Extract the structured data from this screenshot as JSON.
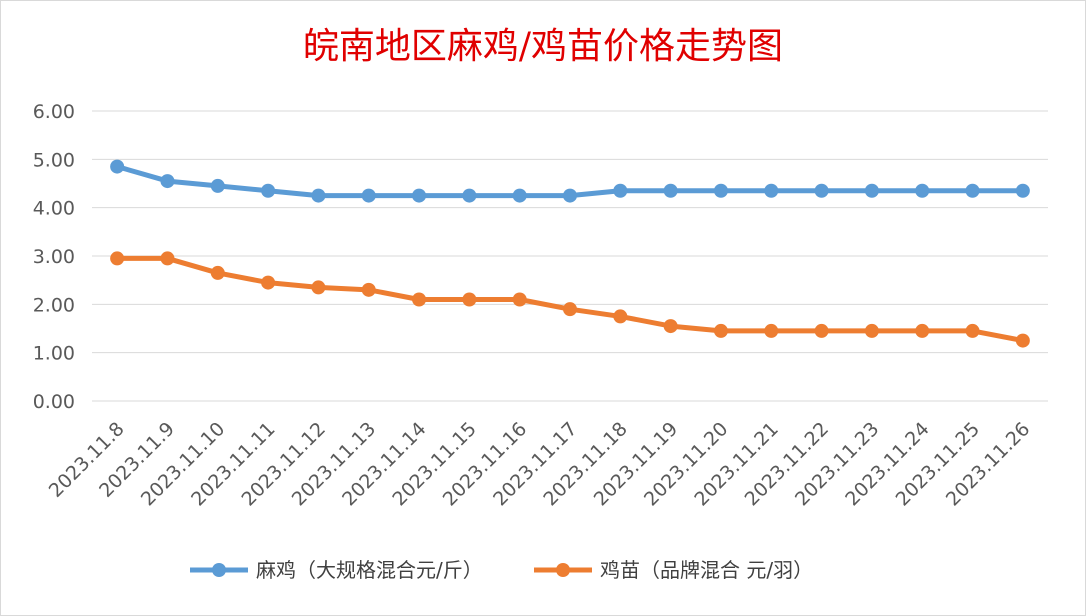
{
  "chart_data": {
    "type": "line",
    "title": "皖南地区麻鸡/鸡苗价格走势图",
    "categories": [
      "2023.11.8",
      "2023.11.9",
      "2023.11.10",
      "2023.11.11",
      "2023.11.12",
      "2023.11.13",
      "2023.11.14",
      "2023.11.15",
      "2023.11.16",
      "2023.11.17",
      "2023.11.18",
      "2023.11.19",
      "2023.11.20",
      "2023.11.21",
      "2023.11.22",
      "2023.11.23",
      "2023.11.24",
      "2023.11.25",
      "2023.11.26"
    ],
    "series": [
      {
        "name": "麻鸡（大规格混合元/斤）",
        "color": "#5b9bd5",
        "values": [
          4.85,
          4.55,
          4.45,
          4.35,
          4.25,
          4.25,
          4.25,
          4.25,
          4.25,
          4.25,
          4.35,
          4.35,
          4.35,
          4.35,
          4.35,
          4.35,
          4.35,
          4.35,
          4.35
        ]
      },
      {
        "name": "鸡苗（品牌混合 元/羽）",
        "color": "#ed7d31",
        "values": [
          2.95,
          2.95,
          2.65,
          2.45,
          2.35,
          2.3,
          2.1,
          2.1,
          2.1,
          1.9,
          1.75,
          1.55,
          1.45,
          1.45,
          1.45,
          1.45,
          1.45,
          1.45,
          1.25
        ]
      }
    ],
    "y_ticks": [
      "0.00",
      "1.00",
      "2.00",
      "3.00",
      "4.00",
      "5.00",
      "6.00"
    ],
    "ylim": [
      0,
      6
    ],
    "grid": true,
    "legend_position": "bottom",
    "title_color": "#e00000",
    "xlabel": "",
    "ylabel": ""
  }
}
